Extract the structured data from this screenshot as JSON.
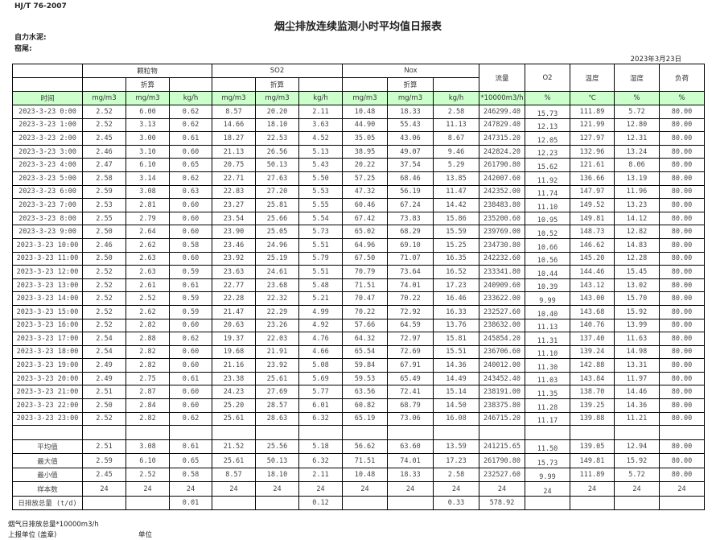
{
  "header": {
    "standard": "HJ/T  76-2007",
    "title": "烟尘排放连续监测小时平均值日报表",
    "company": "自力水泥:",
    "unit": "窑尾:",
    "date": "2023年3月23日"
  },
  "columns": {
    "groups": [
      "颗粒物",
      "SO2",
      "Nox",
      "流量",
      "O2",
      "温度",
      "湿度",
      "负荷"
    ],
    "converted": "折算",
    "units": [
      "时间",
      "mg/m3",
      "mg/m3",
      "kg/h",
      "mg/m3",
      "mg/m3",
      "kg/h",
      "mg/m3",
      "mg/m3",
      "kg/h",
      "*10000m3/h",
      "%",
      "℃",
      "%",
      "%"
    ]
  },
  "rows": [
    [
      "2023-3-23 0:00",
      "2.52",
      "6.00",
      "0.62",
      "8.57",
      "20.20",
      "2.11",
      "10.48",
      "18.33",
      "2.58",
      "246299.40",
      "15.73",
      "111.89",
      "5.72",
      "80.00"
    ],
    [
      "2023-3-23 1:00",
      "2.52",
      "3.13",
      "0.62",
      "14.66",
      "18.10",
      "3.63",
      "44.90",
      "55.43",
      "11.13",
      "247829.40",
      "12.13",
      "121.99",
      "12.80",
      "80.00"
    ],
    [
      "2023-3-23 2:00",
      "2.45",
      "3.00",
      "0.61",
      "18.27",
      "22.53",
      "4.52",
      "35.05",
      "43.06",
      "8.67",
      "247315.20",
      "12.05",
      "127.97",
      "12.31",
      "80.00"
    ],
    [
      "2023-3-23 3:00",
      "2.46",
      "3.10",
      "0.60",
      "21.13",
      "26.56",
      "5.13",
      "38.95",
      "49.07",
      "9.46",
      "242824.20",
      "12.23",
      "132.96",
      "13.24",
      "80.00"
    ],
    [
      "2023-3-23 4:00",
      "2.47",
      "6.10",
      "0.65",
      "20.75",
      "50.13",
      "5.43",
      "20.22",
      "37.54",
      "5.29",
      "261790.80",
      "15.62",
      "121.61",
      "8.06",
      "80.00"
    ],
    [
      "2023-3-23 5:00",
      "2.58",
      "3.14",
      "0.62",
      "22.71",
      "27.63",
      "5.50",
      "57.25",
      "68.46",
      "13.85",
      "242007.60",
      "11.92",
      "136.66",
      "13.19",
      "80.00"
    ],
    [
      "2023-3-23 6:00",
      "2.59",
      "3.08",
      "0.63",
      "22.83",
      "27.20",
      "5.53",
      "47.32",
      "56.19",
      "11.47",
      "242352.00",
      "11.74",
      "147.97",
      "11.96",
      "80.00"
    ],
    [
      "2023-3-23 7:00",
      "2.53",
      "2.81",
      "0.60",
      "23.27",
      "25.81",
      "5.55",
      "60.46",
      "67.24",
      "14.42",
      "238483.80",
      "11.10",
      "149.52",
      "13.23",
      "80.00"
    ],
    [
      "2023-3-23 8:00",
      "2.55",
      "2.79",
      "0.60",
      "23.54",
      "25.66",
      "5.54",
      "67.42",
      "73.83",
      "15.86",
      "235200.60",
      "10.95",
      "149.81",
      "14.12",
      "80.00"
    ],
    [
      "2023-3-23 9:00",
      "2.50",
      "2.64",
      "0.60",
      "23.90",
      "25.05",
      "5.73",
      "65.02",
      "68.29",
      "15.59",
      "239769.00",
      "10.52",
      "148.73",
      "12.82",
      "80.00"
    ],
    [
      "2023-3-23 10:00",
      "2.46",
      "2.62",
      "0.58",
      "23.46",
      "24.96",
      "5.51",
      "64.96",
      "69.10",
      "15.25",
      "234730.80",
      "10.66",
      "146.62",
      "14.83",
      "80.00"
    ],
    [
      "2023-3-23 11:00",
      "2.50",
      "2.63",
      "0.60",
      "23.92",
      "25.19",
      "5.79",
      "67.50",
      "71.07",
      "16.35",
      "242232.60",
      "10.56",
      "145.20",
      "12.28",
      "80.00"
    ],
    [
      "2023-3-23 12:00",
      "2.52",
      "2.63",
      "0.59",
      "23.63",
      "24.61",
      "5.51",
      "70.79",
      "73.64",
      "16.52",
      "233341.80",
      "10.44",
      "144.46",
      "15.45",
      "80.00"
    ],
    [
      "2023-3-23 13:00",
      "2.52",
      "2.61",
      "0.61",
      "22.77",
      "23.68",
      "5.48",
      "71.51",
      "74.01",
      "17.23",
      "240909.60",
      "10.39",
      "143.12",
      "13.02",
      "80.00"
    ],
    [
      "2023-3-23 14:00",
      "2.52",
      "2.52",
      "0.59",
      "22.28",
      "22.32",
      "5.21",
      "70.47",
      "70.22",
      "16.46",
      "233622.00",
      "9.99",
      "143.00",
      "15.70",
      "80.00"
    ],
    [
      "2023-3-23 15:00",
      "2.52",
      "2.62",
      "0.59",
      "21.47",
      "22.29",
      "4.99",
      "70.22",
      "72.92",
      "16.33",
      "232527.60",
      "10.40",
      "143.68",
      "15.92",
      "80.00"
    ],
    [
      "2023-3-23 16:00",
      "2.52",
      "2.82",
      "0.60",
      "20.63",
      "23.26",
      "4.92",
      "57.66",
      "64.59",
      "13.76",
      "238632.00",
      "11.13",
      "140.76",
      "13.99",
      "80.00"
    ],
    [
      "2023-3-23 17:00",
      "2.54",
      "2.88",
      "0.62",
      "19.37",
      "22.03",
      "4.76",
      "64.32",
      "72.97",
      "15.81",
      "245854.20",
      "11.31",
      "137.40",
      "11.63",
      "80.00"
    ],
    [
      "2023-3-23 18:00",
      "2.54",
      "2.82",
      "0.60",
      "19.68",
      "21.91",
      "4.66",
      "65.54",
      "72.69",
      "15.51",
      "236706.60",
      "11.10",
      "139.24",
      "14.98",
      "80.00"
    ],
    [
      "2023-3-23 19:00",
      "2.49",
      "2.82",
      "0.60",
      "21.16",
      "23.92",
      "5.08",
      "59.84",
      "67.91",
      "14.36",
      "240012.00",
      "11.30",
      "142.88",
      "13.31",
      "80.00"
    ],
    [
      "2023-3-23 20:00",
      "2.49",
      "2.75",
      "0.61",
      "23.38",
      "25.61",
      "5.69",
      "59.53",
      "65.49",
      "14.49",
      "243452.40",
      "11.03",
      "143.84",
      "11.97",
      "80.00"
    ],
    [
      "2023-3-23 21:00",
      "2.51",
      "2.87",
      "0.60",
      "24.23",
      "27.69",
      "5.77",
      "63.56",
      "72.41",
      "15.14",
      "238191.00",
      "11.35",
      "138.70",
      "14.46",
      "80.00"
    ],
    [
      "2023-3-23 22:00",
      "2.50",
      "2.84",
      "0.60",
      "25.20",
      "28.57",
      "6.01",
      "60.82",
      "68.79",
      "14.50",
      "238375.80",
      "11.28",
      "139.25",
      "14.36",
      "80.00"
    ],
    [
      "2023-3-23 23:00",
      "2.52",
      "2.82",
      "0.62",
      "25.61",
      "28.63",
      "6.32",
      "65.19",
      "73.06",
      "16.08",
      "246715.20",
      "11.17",
      "139.88",
      "11.21",
      "80.00"
    ]
  ],
  "summary": [
    [
      "平均值",
      "2.51",
      "3.08",
      "0.61",
      "21.52",
      "25.56",
      "5.18",
      "56.62",
      "63.60",
      "13.59",
      "241215.65",
      "11.50",
      "139.05",
      "12.94",
      "80.00"
    ],
    [
      "最大值",
      "2.59",
      "6.10",
      "0.65",
      "25.61",
      "50.13",
      "6.32",
      "71.51",
      "74.01",
      "17.23",
      "261790.80",
      "15.73",
      "149.81",
      "15.92",
      "80.00"
    ],
    [
      "最小值",
      "2.45",
      "2.52",
      "0.58",
      "8.57",
      "18.10",
      "2.11",
      "10.48",
      "18.33",
      "2.58",
      "232527.60",
      "9.99",
      "111.89",
      "5.72",
      "80.00"
    ],
    [
      "样本数",
      "24",
      "24",
      "24",
      "24",
      "24",
      "24",
      "24",
      "24",
      "24",
      "24",
      "24",
      "24",
      "24",
      "24"
    ],
    [
      "日排放总量 (t/d)",
      "",
      "",
      "0.01",
      "",
      "",
      "0.12",
      "",
      "",
      "0.33",
      "578.92",
      "",
      "",
      "",
      ""
    ]
  ],
  "footer": {
    "flue_total": "烟气日排放总量*10000m3/h",
    "report_unit": "上报单位 (盖章)",
    "unit_label": "单位"
  },
  "colors": {
    "header_green": "#ccffcc"
  }
}
